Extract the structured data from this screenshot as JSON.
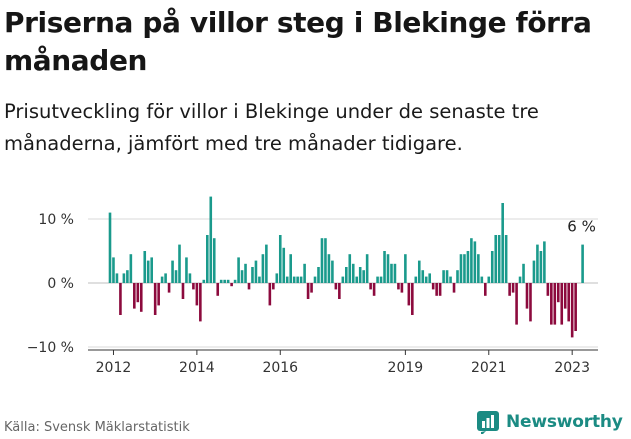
{
  "header": {
    "title": "Priserna på villor steg i Blekinge förra månaden",
    "subtitle": "Prisutveckling för villor i Blekinge under de senaste tre månaderna, jämfört med tre månader tidigare."
  },
  "footer": {
    "source": "Källa: Svensk Mäklarstatistik",
    "brand": "Newsworthy"
  },
  "colors": {
    "positive": "#1a9a8c",
    "negative": "#8c0a3d",
    "brand": "#1b8b83",
    "gridline": "#d9d9d9"
  },
  "chart_data": {
    "type": "bar",
    "title": "",
    "xlabel": "",
    "ylabel": "",
    "ylim": [
      -10,
      15
    ],
    "yticks": [
      {
        "value": 10,
        "label": "10 %"
      },
      {
        "value": 0,
        "label": "0 %"
      },
      {
        "value": -10,
        "label": "−10 %"
      }
    ],
    "xticks": [
      "2012",
      "2014",
      "2016",
      "2019",
      "2021",
      "2023"
    ],
    "grid": "horizontal",
    "end_label": "6 %",
    "series": [
      {
        "start": "2011-12",
        "frequency": "monthly",
        "values": [
          11,
          4,
          1.5,
          -5,
          1.5,
          2,
          4.5,
          -4,
          -3,
          -4.5,
          5,
          3.5,
          4,
          -5,
          -3.5,
          1,
          1.5,
          -1.5,
          3.5,
          2,
          6,
          -2.5,
          4,
          1.5,
          -1,
          -3.5,
          -6,
          0.5,
          7.5,
          13.5,
          7,
          -2,
          0.5,
          0.5,
          0.5,
          -0.5,
          0.5,
          4,
          2,
          3,
          -1,
          2.5,
          3.5,
          1,
          4.5,
          6,
          -3.5,
          -1,
          1.5,
          7.5,
          5.5,
          1,
          4.5,
          1,
          1,
          1,
          3,
          -2.5,
          -1.5,
          1,
          2.5,
          7,
          7,
          4.5,
          3.5,
          -1,
          -2.5,
          1,
          2.5,
          4.5,
          3,
          1,
          2.5,
          2,
          4.5,
          -1,
          -2,
          1,
          1,
          5,
          4.5,
          3,
          3,
          -1,
          -1.5,
          4.5,
          -3.5,
          -5,
          1,
          3.5,
          2,
          1,
          1.5,
          -1,
          -2,
          -2,
          2,
          2,
          1,
          -1.5,
          2,
          4.5,
          4.5,
          5,
          7,
          6.5,
          4.5,
          1,
          -2,
          1,
          5,
          7.5,
          7.5,
          12.5,
          7.5,
          -2,
          -1.5,
          -6.5,
          1,
          3,
          -4,
          -6,
          3.5,
          6,
          5,
          6.5,
          -2,
          -6.5,
          -6.5,
          -3,
          -6.5,
          -4,
          -6,
          -8.5,
          -7.5,
          0,
          6
        ]
      }
    ]
  }
}
